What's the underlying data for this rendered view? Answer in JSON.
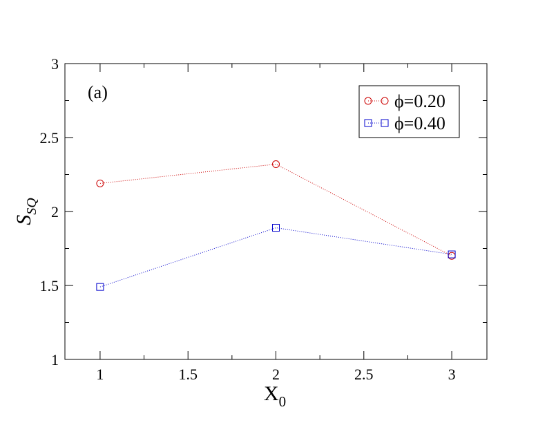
{
  "chart_data": {
    "type": "line",
    "panel_label": "(a)",
    "xlabel": "X",
    "xlabel_sub": "0",
    "ylabel": "S",
    "ylabel_sub": "SQ",
    "xlim": [
      0.8,
      3.2
    ],
    "ylim": [
      1,
      3
    ],
    "x_ticks": [
      1,
      1.5,
      2,
      2.5,
      3
    ],
    "x_tick_labels": [
      "1",
      "1.5",
      "2",
      "2.5",
      "3"
    ],
    "y_ticks": [
      1,
      1.5,
      2,
      2.5,
      3
    ],
    "y_tick_labels": [
      "1",
      "1.5",
      "2",
      "2.5",
      "3"
    ],
    "grid": false,
    "legend_position": "top-right",
    "series": [
      {
        "name": "ϕ=0.20",
        "color": "#cc0000",
        "marker": "circle",
        "line_style": "dotted",
        "x": [
          1,
          2,
          3
        ],
        "y": [
          2.19,
          2.32,
          1.7
        ]
      },
      {
        "name": "ϕ=0.40",
        "color": "#0000cc",
        "marker": "square",
        "line_style": "dotted",
        "x": [
          1,
          2,
          3
        ],
        "y": [
          1.49,
          1.89,
          1.71
        ]
      }
    ]
  }
}
